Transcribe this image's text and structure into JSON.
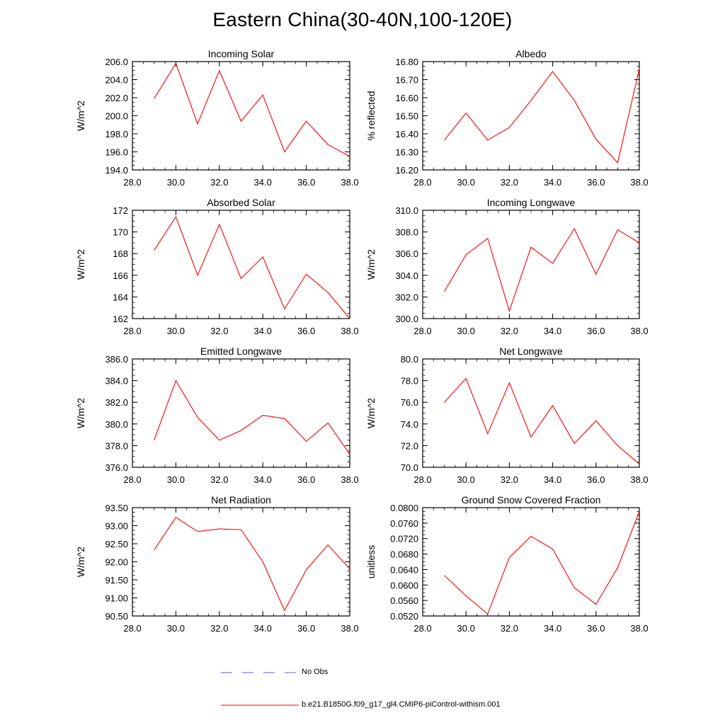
{
  "title": "Eastern China(30-40N,100-120E)",
  "colors": {
    "model": "#ff0000",
    "obs": "#5b5bd6",
    "axis": "#000000"
  },
  "legend": {
    "obs_label": "No Obs",
    "model_label": "b.e21.B1850G.f09_g17_gl4.CMIP6-piControl-withism.001"
  },
  "chart_data": [
    {
      "type": "line",
      "title": "Incoming Solar",
      "ylabel": "W/m^2",
      "xlabel": "",
      "xlim": [
        28,
        38
      ],
      "ylim": [
        194,
        206
      ],
      "xticks": [
        28,
        30,
        32,
        34,
        36,
        38
      ],
      "xtick_labels": [
        "28.0",
        "30.0",
        "32.0",
        "34.0",
        "36.0",
        "38.0"
      ],
      "yticks": [
        194,
        196,
        198,
        200,
        202,
        204,
        206
      ],
      "ytick_labels": [
        "194.0",
        "196.0",
        "198.0",
        "200.0",
        "202.0",
        "204.0",
        "206.0"
      ],
      "series": [
        {
          "name": "b.e21.B1850G.f09_g17_gl4.CMIP6-piControl-withism.001",
          "x": [
            29,
            30,
            31,
            32,
            33,
            34,
            35,
            36,
            37,
            38
          ],
          "values": [
            201.9,
            205.8,
            199.1,
            205.0,
            199.4,
            202.3,
            196.0,
            199.4,
            196.8,
            195.5
          ]
        }
      ]
    },
    {
      "type": "line",
      "title": "Albedo",
      "ylabel": "% reflected",
      "xlabel": "",
      "xlim": [
        28,
        38
      ],
      "ylim": [
        16.2,
        16.8
      ],
      "xticks": [
        28,
        30,
        32,
        34,
        36,
        38
      ],
      "xtick_labels": [
        "28.0",
        "30.0",
        "32.0",
        "34.0",
        "36.0",
        "38.0"
      ],
      "yticks": [
        16.2,
        16.3,
        16.4,
        16.5,
        16.6,
        16.7,
        16.8
      ],
      "ytick_labels": [
        "16.20",
        "16.30",
        "16.40",
        "16.50",
        "16.60",
        "16.70",
        "16.80"
      ],
      "series": [
        {
          "name": "b.e21.B1850G.f09_g17_gl4.CMIP6-piControl-withism.001",
          "x": [
            29,
            30,
            31,
            32,
            33,
            34,
            35,
            36,
            37,
            38
          ],
          "values": [
            16.365,
            16.515,
            16.365,
            16.435,
            16.585,
            16.745,
            16.585,
            16.37,
            16.24,
            16.76
          ]
        }
      ]
    },
    {
      "type": "line",
      "title": "Absorbed Solar",
      "ylabel": "W/m^2",
      "xlabel": "",
      "xlim": [
        28,
        38
      ],
      "ylim": [
        162,
        172
      ],
      "xticks": [
        28,
        30,
        32,
        34,
        36,
        38
      ],
      "xtick_labels": [
        "28.0",
        "30.0",
        "32.0",
        "34.0",
        "36.0",
        "38.0"
      ],
      "yticks": [
        162,
        164,
        166,
        168,
        170,
        172
      ],
      "ytick_labels": [
        "162",
        "164",
        "166",
        "168",
        "170",
        "172"
      ],
      "series": [
        {
          "name": "b.e21.B1850G.f09_g17_gl4.CMIP6-piControl-withism.001",
          "x": [
            29,
            30,
            31,
            32,
            33,
            34,
            35,
            36,
            37,
            38
          ],
          "values": [
            168.3,
            171.4,
            166.0,
            170.7,
            165.7,
            167.7,
            162.9,
            166.1,
            164.4,
            162.0
          ]
        }
      ]
    },
    {
      "type": "line",
      "title": "Incoming Longwave",
      "ylabel": "W/m^2",
      "xlabel": "",
      "xlim": [
        28,
        38
      ],
      "ylim": [
        300,
        310
      ],
      "xticks": [
        28,
        30,
        32,
        34,
        36,
        38
      ],
      "xtick_labels": [
        "28.0",
        "30.0",
        "32.0",
        "34.0",
        "36.0",
        "38.0"
      ],
      "yticks": [
        300,
        302,
        304,
        306,
        308,
        310
      ],
      "ytick_labels": [
        "300.0",
        "302.0",
        "304.0",
        "306.0",
        "308.0",
        "310.0"
      ],
      "series": [
        {
          "name": "b.e21.B1850G.f09_g17_gl4.CMIP6-piControl-withism.001",
          "x": [
            29,
            30,
            31,
            32,
            33,
            34,
            35,
            36,
            37,
            38
          ],
          "values": [
            302.5,
            305.9,
            307.4,
            300.7,
            306.6,
            305.1,
            308.3,
            304.1,
            308.2,
            307.0
          ]
        }
      ]
    },
    {
      "type": "line",
      "title": "Emitted Longwave",
      "ylabel": "W/m^2",
      "xlabel": "",
      "xlim": [
        28,
        38
      ],
      "ylim": [
        376,
        386
      ],
      "xticks": [
        28,
        30,
        32,
        34,
        36,
        38
      ],
      "xtick_labels": [
        "28.0",
        "30.0",
        "32.0",
        "34.0",
        "36.0",
        "38.0"
      ],
      "yticks": [
        376,
        378,
        380,
        382,
        384,
        386
      ],
      "ytick_labels": [
        "376.0",
        "378.0",
        "380.0",
        "382.0",
        "384.0",
        "386.0"
      ],
      "series": [
        {
          "name": "b.e21.B1850G.f09_g17_gl4.CMIP6-piControl-withism.001",
          "x": [
            29,
            30,
            31,
            32,
            33,
            34,
            35,
            36,
            37,
            38
          ],
          "values": [
            378.5,
            384.0,
            380.6,
            378.5,
            379.4,
            380.8,
            380.5,
            378.4,
            380.1,
            377.2
          ]
        }
      ]
    },
    {
      "type": "line",
      "title": "Net Longwave",
      "ylabel": "W/m^2",
      "xlabel": "",
      "xlim": [
        28,
        38
      ],
      "ylim": [
        70,
        80
      ],
      "xticks": [
        28,
        30,
        32,
        34,
        36,
        38
      ],
      "xtick_labels": [
        "28.0",
        "30.0",
        "32.0",
        "34.0",
        "36.0",
        "38.0"
      ],
      "yticks": [
        70,
        72,
        74,
        76,
        78,
        80
      ],
      "ytick_labels": [
        "70.0",
        "72.0",
        "74.0",
        "76.0",
        "78.0",
        "80.0"
      ],
      "series": [
        {
          "name": "b.e21.B1850G.f09_g17_gl4.CMIP6-piControl-withism.001",
          "x": [
            29,
            30,
            31,
            32,
            33,
            34,
            35,
            36,
            37,
            38
          ],
          "values": [
            76.0,
            78.2,
            73.1,
            77.8,
            72.8,
            75.7,
            72.2,
            74.3,
            72.0,
            70.3
          ]
        }
      ]
    },
    {
      "type": "line",
      "title": "Net Radiation",
      "ylabel": "W/m^2",
      "xlabel": "",
      "xlim": [
        28,
        38
      ],
      "ylim": [
        90.5,
        93.5
      ],
      "xticks": [
        28,
        30,
        32,
        34,
        36,
        38
      ],
      "xtick_labels": [
        "28.0",
        "30.0",
        "32.0",
        "34.0",
        "36.0",
        "38.0"
      ],
      "yticks": [
        90.5,
        91.0,
        91.5,
        92.0,
        92.5,
        93.0,
        93.5
      ],
      "ytick_labels": [
        "90.50",
        "91.00",
        "91.50",
        "92.00",
        "92.50",
        "93.00",
        "93.50"
      ],
      "series": [
        {
          "name": "b.e21.B1850G.f09_g17_gl4.CMIP6-piControl-withism.001",
          "x": [
            29,
            30,
            31,
            32,
            33,
            34,
            35,
            36,
            37,
            38
          ],
          "values": [
            92.33,
            93.23,
            92.84,
            92.91,
            92.89,
            92.0,
            90.65,
            91.78,
            92.47,
            91.8
          ]
        }
      ]
    },
    {
      "type": "line",
      "title": "Ground Snow Covered Fraction",
      "ylabel": "unitless",
      "xlabel": "",
      "xlim": [
        28,
        38
      ],
      "ylim": [
        0.052,
        0.08
      ],
      "xticks": [
        28,
        30,
        32,
        34,
        36,
        38
      ],
      "xtick_labels": [
        "28.0",
        "30.0",
        "32.0",
        "34.0",
        "36.0",
        "38.0"
      ],
      "yticks": [
        0.052,
        0.056,
        0.06,
        0.064,
        0.068,
        0.072,
        0.076,
        0.08
      ],
      "ytick_labels": [
        "0.0520",
        "0.0560",
        "0.0600",
        "0.0640",
        "0.0680",
        "0.0720",
        "0.0760",
        "0.0800"
      ],
      "series": [
        {
          "name": "b.e21.B1850G.f09_g17_gl4.CMIP6-piControl-withism.001",
          "x": [
            29,
            30,
            31,
            32,
            33,
            34,
            35,
            36,
            37,
            38
          ],
          "values": [
            0.0625,
            0.0572,
            0.0525,
            0.0671,
            0.0726,
            0.0693,
            0.0593,
            0.055,
            0.0645,
            0.079
          ]
        }
      ]
    }
  ]
}
